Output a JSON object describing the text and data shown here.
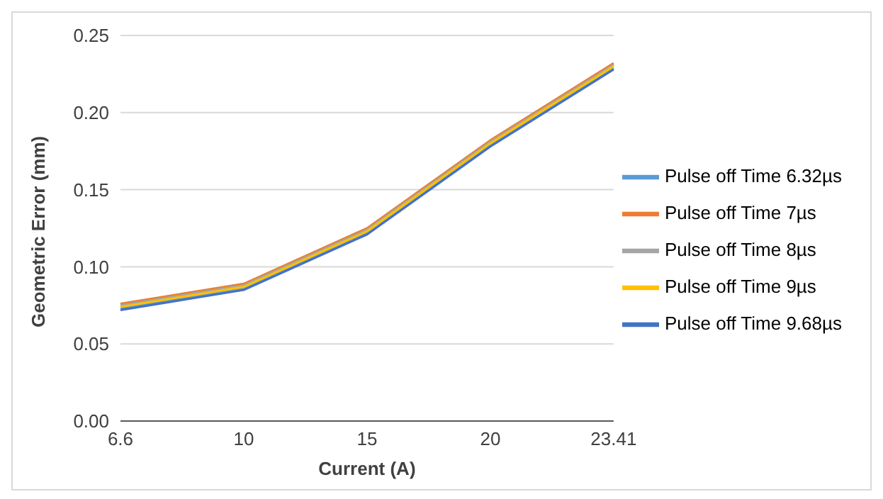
{
  "chart_data": {
    "type": "line",
    "xlabel": "Current (A)",
    "ylabel": "Geometric Error (mm)",
    "categories": [
      "6.6",
      "10",
      "15",
      "20",
      "23.41"
    ],
    "series": [
      {
        "name": "Pulse off Time 6.32µs",
        "color": "#5b9bd5",
        "values": [
          0.073,
          0.086,
          0.122,
          0.179,
          0.229
        ]
      },
      {
        "name": "Pulse off Time 7µs",
        "color": "#ed7d31",
        "values": [
          0.076,
          0.089,
          0.125,
          0.182,
          0.232
        ]
      },
      {
        "name": "Pulse off Time 8µs",
        "color": "#a5a5a5",
        "values": [
          0.075,
          0.088,
          0.124,
          0.181,
          0.231
        ]
      },
      {
        "name": "Pulse off Time 9µs",
        "color": "#ffc000",
        "values": [
          0.074,
          0.087,
          0.123,
          0.18,
          0.23
        ]
      },
      {
        "name": "Pulse off Time 9.68µs",
        "color": "#4472c4",
        "values": [
          0.072,
          0.085,
          0.121,
          0.178,
          0.228
        ]
      }
    ],
    "ylim": [
      0,
      0.25
    ],
    "yticks": [
      {
        "value": 0,
        "label": "0.00"
      },
      {
        "value": 0.05,
        "label": "0.05"
      },
      {
        "value": 0.1,
        "label": "0.10"
      },
      {
        "value": 0.15,
        "label": "0.15"
      },
      {
        "value": 0.2,
        "label": "0.20"
      },
      {
        "value": 0.25,
        "label": "0.25"
      }
    ],
    "grid": "y",
    "legend": "right",
    "marker": "none",
    "line_style": "solid"
  }
}
